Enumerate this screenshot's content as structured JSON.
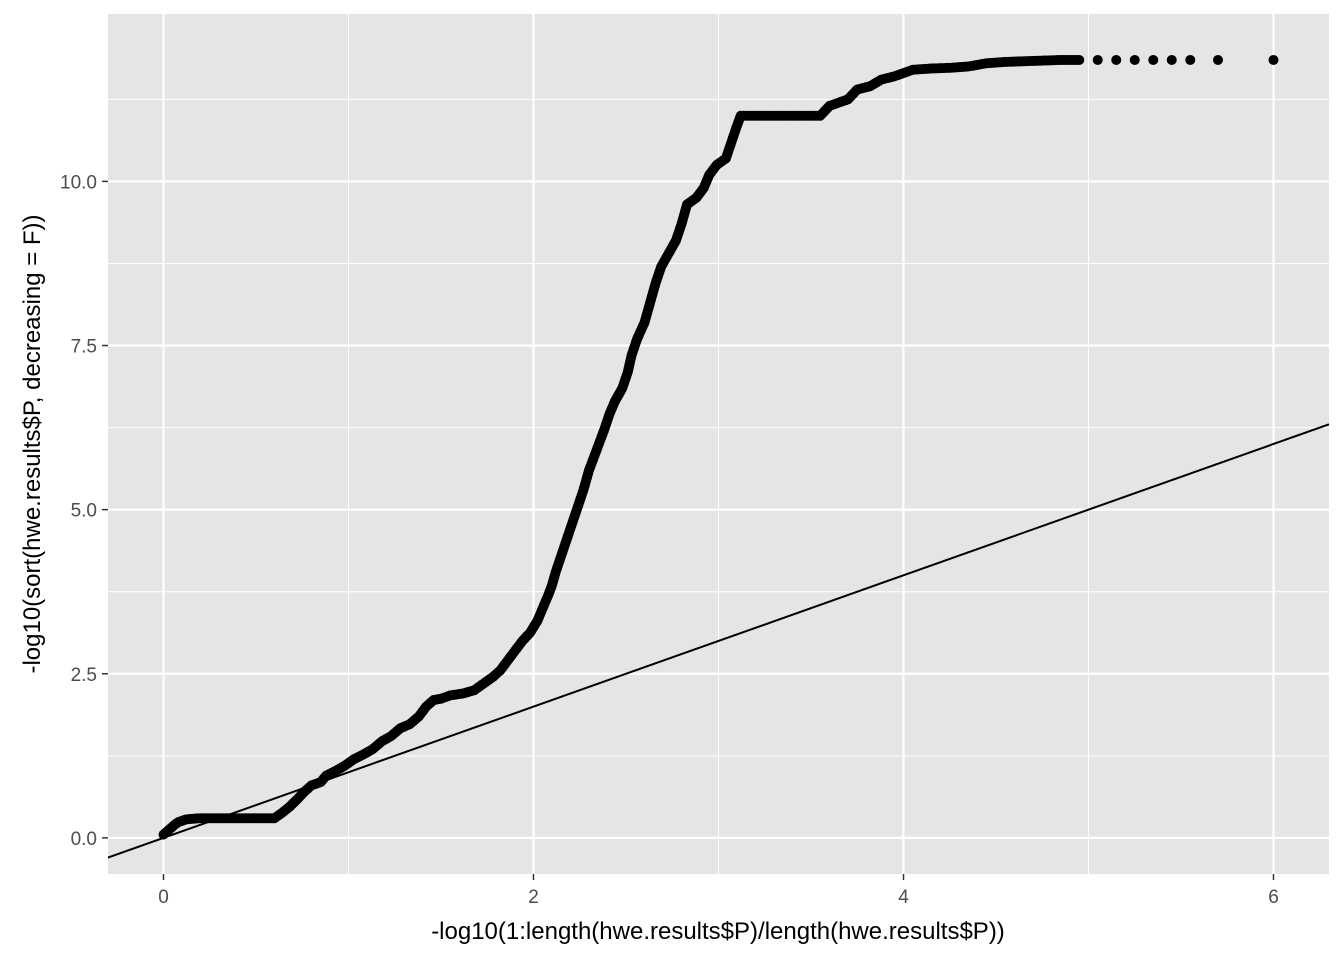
{
  "chart_data": {
    "type": "scatter",
    "title": "",
    "xlabel": "-log10(1:length(hwe.results$P)/length(hwe.results$P))",
    "ylabel": "-log10(sort(hwe.results$P, decreasing = F))",
    "xlim": [
      -0.3,
      6.3
    ],
    "ylim": [
      -0.55,
      12.55
    ],
    "x_ticks": [
      0,
      2,
      4,
      6
    ],
    "x_tick_labels": [
      "0",
      "2",
      "4",
      "6"
    ],
    "y_ticks": [
      0,
      2.5,
      5,
      7.5,
      10
    ],
    "y_tick_labels": [
      "0.0",
      "2.5",
      "5.0",
      "7.5",
      "10.0"
    ],
    "grid": true,
    "legend": "none",
    "colors": {
      "panel_background": "#e5e5e5",
      "grid_major": "#ffffff",
      "points": "#000000",
      "reference_line": "#000000"
    },
    "reference_line": {
      "slope": 1,
      "intercept": 0
    },
    "series": [
      {
        "points": [
          [
            0.0,
            0.05
          ],
          [
            0.02,
            0.1
          ],
          [
            0.04,
            0.15
          ],
          [
            0.06,
            0.2
          ],
          [
            0.08,
            0.24
          ],
          [
            0.1,
            0.26
          ],
          [
            0.12,
            0.28
          ],
          [
            0.15,
            0.29
          ],
          [
            0.2,
            0.3
          ],
          [
            0.25,
            0.3
          ],
          [
            0.3,
            0.3
          ],
          [
            0.35,
            0.3
          ],
          [
            0.4,
            0.3
          ],
          [
            0.45,
            0.3
          ],
          [
            0.5,
            0.3
          ],
          [
            0.55,
            0.3
          ],
          [
            0.6,
            0.3
          ],
          [
            0.64,
            0.38
          ],
          [
            0.68,
            0.47
          ],
          [
            0.72,
            0.58
          ],
          [
            0.76,
            0.7
          ],
          [
            0.8,
            0.8
          ],
          [
            0.85,
            0.85
          ],
          [
            0.88,
            0.95
          ],
          [
            0.93,
            1.02
          ],
          [
            0.98,
            1.1
          ],
          [
            1.03,
            1.2
          ],
          [
            1.08,
            1.27
          ],
          [
            1.13,
            1.35
          ],
          [
            1.18,
            1.47
          ],
          [
            1.23,
            1.55
          ],
          [
            1.28,
            1.67
          ],
          [
            1.33,
            1.73
          ],
          [
            1.38,
            1.85
          ],
          [
            1.42,
            2.0
          ],
          [
            1.46,
            2.1
          ],
          [
            1.5,
            2.12
          ],
          [
            1.55,
            2.17
          ],
          [
            1.62,
            2.2
          ],
          [
            1.68,
            2.25
          ],
          [
            1.73,
            2.35
          ],
          [
            1.78,
            2.45
          ],
          [
            1.82,
            2.55
          ],
          [
            1.86,
            2.7
          ],
          [
            1.9,
            2.85
          ],
          [
            1.94,
            3.0
          ],
          [
            1.98,
            3.12
          ],
          [
            2.02,
            3.3
          ],
          [
            2.05,
            3.5
          ],
          [
            2.08,
            3.7
          ],
          [
            2.1,
            3.85
          ],
          [
            2.12,
            4.05
          ],
          [
            2.15,
            4.3
          ],
          [
            2.18,
            4.55
          ],
          [
            2.21,
            4.8
          ],
          [
            2.24,
            5.05
          ],
          [
            2.27,
            5.3
          ],
          [
            2.3,
            5.6
          ],
          [
            2.34,
            5.9
          ],
          [
            2.38,
            6.2
          ],
          [
            2.41,
            6.45
          ],
          [
            2.44,
            6.65
          ],
          [
            2.48,
            6.85
          ],
          [
            2.51,
            7.1
          ],
          [
            2.53,
            7.35
          ],
          [
            2.56,
            7.6
          ],
          [
            2.6,
            7.85
          ],
          [
            2.63,
            8.15
          ],
          [
            2.66,
            8.45
          ],
          [
            2.69,
            8.7
          ],
          [
            2.73,
            8.9
          ],
          [
            2.77,
            9.1
          ],
          [
            2.8,
            9.35
          ],
          [
            2.83,
            9.65
          ],
          [
            2.88,
            9.75
          ],
          [
            2.92,
            9.9
          ],
          [
            2.95,
            10.1
          ],
          [
            2.99,
            10.25
          ],
          [
            3.04,
            10.35
          ],
          [
            3.07,
            10.6
          ],
          [
            3.1,
            10.85
          ],
          [
            3.12,
            11.0
          ],
          [
            3.2,
            11.0
          ],
          [
            3.3,
            11.0
          ],
          [
            3.4,
            11.0
          ],
          [
            3.5,
            11.0
          ],
          [
            3.55,
            11.0
          ],
          [
            3.6,
            11.15
          ],
          [
            3.65,
            11.2
          ],
          [
            3.7,
            11.25
          ],
          [
            3.75,
            11.4
          ],
          [
            3.82,
            11.45
          ],
          [
            3.88,
            11.55
          ],
          [
            3.95,
            11.6
          ],
          [
            4.0,
            11.65
          ],
          [
            4.05,
            11.7
          ],
          [
            4.15,
            11.72
          ],
          [
            4.25,
            11.73
          ],
          [
            4.35,
            11.75
          ],
          [
            4.45,
            11.8
          ],
          [
            4.55,
            11.82
          ],
          [
            4.65,
            11.83
          ],
          [
            4.75,
            11.84
          ],
          [
            4.85,
            11.85
          ],
          [
            4.95,
            11.85
          ],
          [
            5.05,
            11.85
          ],
          [
            5.15,
            11.85
          ],
          [
            5.25,
            11.85
          ],
          [
            5.35,
            11.85
          ],
          [
            5.45,
            11.85
          ],
          [
            5.55,
            11.85
          ],
          [
            5.7,
            11.85
          ],
          [
            6.0,
            11.85
          ]
        ]
      }
    ]
  }
}
